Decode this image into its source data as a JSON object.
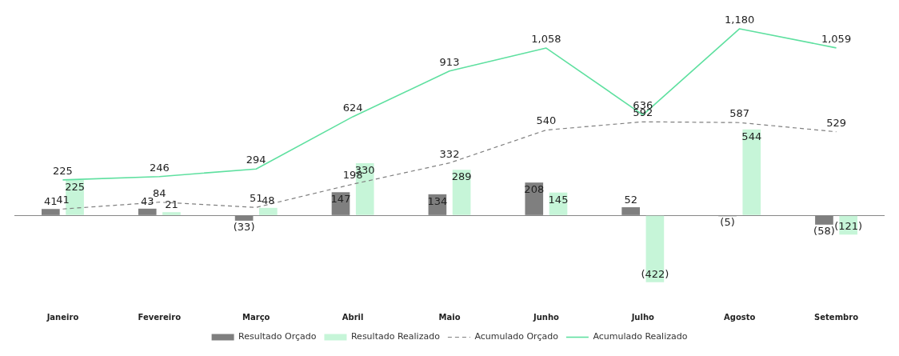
{
  "chart_data": {
    "type": "bar",
    "categories": [
      "Janeiro",
      "Fevereiro",
      "Março",
      "Abril",
      "Maio",
      "Junho",
      "Julho",
      "Agosto",
      "Setembro"
    ],
    "legend": "bottom",
    "grid": false,
    "series": [
      {
        "name": "Resultado Orçado",
        "color": "#7f7f7f",
        "values": [
          41,
          43,
          -33,
          147,
          134,
          208,
          52,
          -5,
          -58
        ],
        "value_labels": [
          "41",
          "43",
          "(33)",
          "147",
          "134",
          "208",
          "52",
          "(5)",
          "(58)"
        ]
      },
      {
        "name": "Resultado Realizado",
        "color": "#c6f5d8",
        "values": [
          225,
          21,
          48,
          330,
          289,
          145,
          -422,
          544,
          -121
        ],
        "value_labels": [
          "225",
          "21",
          "48",
          "330",
          "289",
          "145",
          "(422)",
          "544",
          "(121)"
        ]
      },
      {
        "name": "Acumulado Orçado",
        "type": "line",
        "color": "#808080",
        "line_style": "dashed",
        "marker": "none",
        "values": [
          41,
          84,
          51,
          198,
          332,
          540,
          592,
          587,
          529
        ],
        "value_labels": [
          "41",
          "84",
          "51",
          "198",
          "332",
          "540",
          "592",
          "587",
          "529"
        ]
      },
      {
        "name": "Acumulado Realizado",
        "type": "line",
        "color": "#5fe0a0",
        "line_style": "solid",
        "marker": "none",
        "values": [
          225,
          246,
          294,
          624,
          913,
          1058,
          636,
          1180,
          1059
        ],
        "value_labels": [
          "225",
          "246",
          "294",
          "624",
          "913",
          "1,058",
          "636",
          "1,180",
          "1,059"
        ]
      }
    ]
  }
}
